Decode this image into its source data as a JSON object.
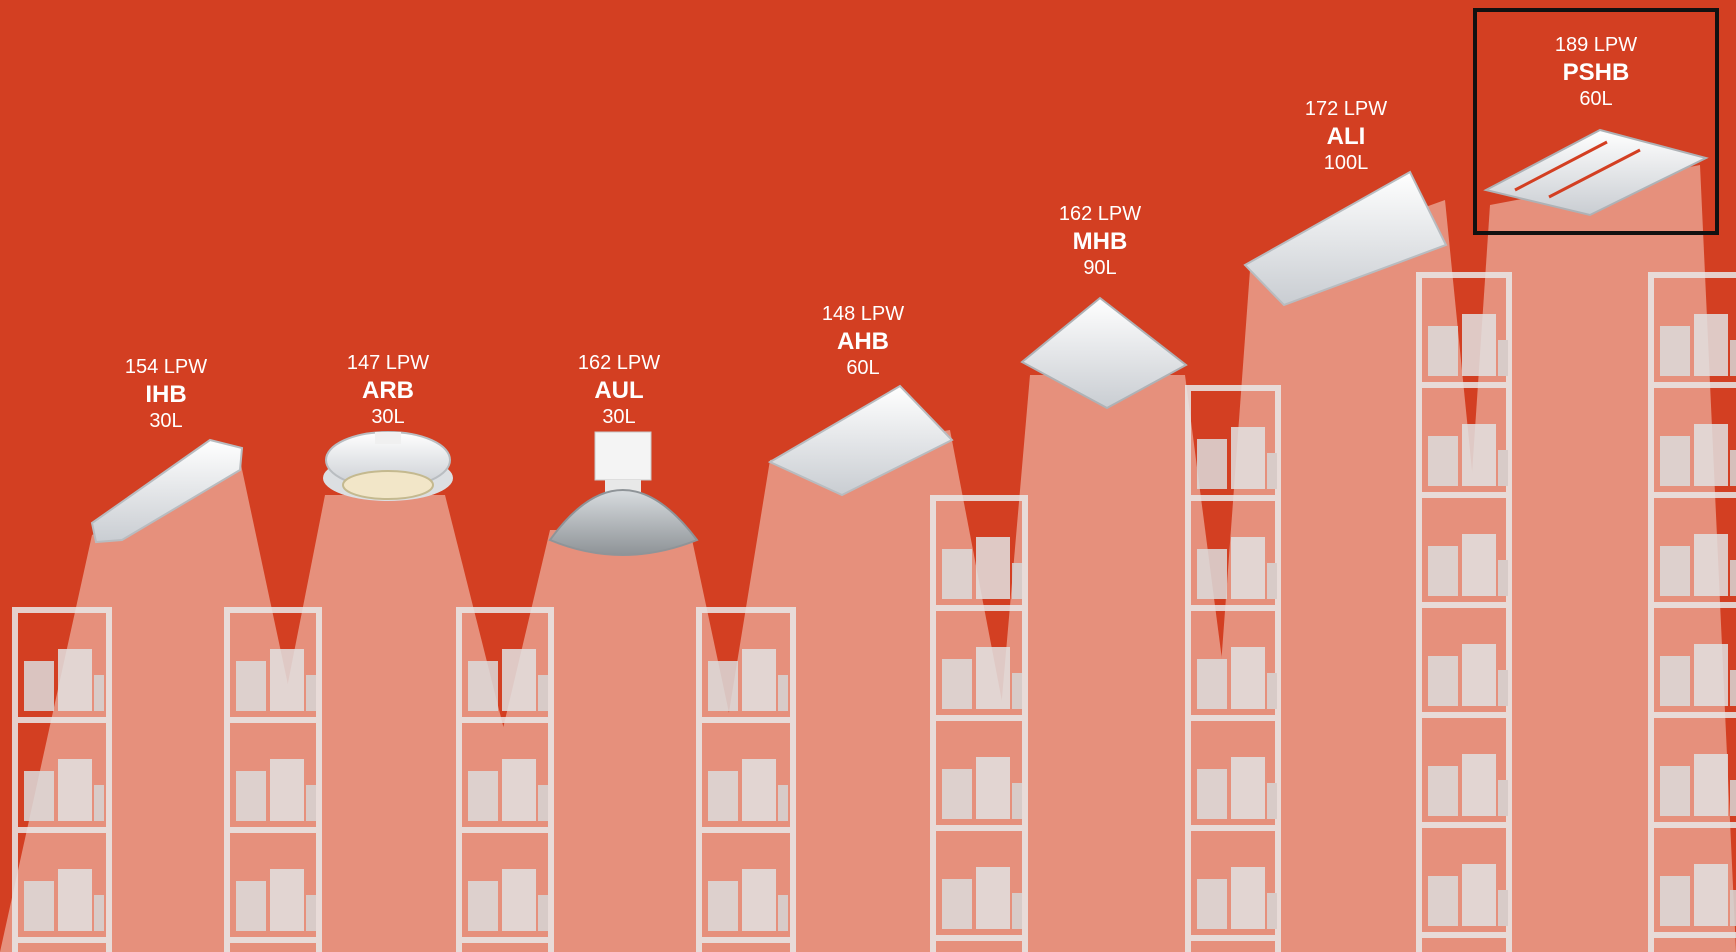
{
  "fixtures": [
    {
      "lpw": "154 LPW",
      "model": "IHB",
      "lumens": "30L"
    },
    {
      "lpw": "147 LPW",
      "model": "ARB",
      "lumens": "30L"
    },
    {
      "lpw": "162 LPW",
      "model": "AUL",
      "lumens": "30L"
    },
    {
      "lpw": "148 LPW",
      "model": "AHB",
      "lumens": "60L"
    },
    {
      "lpw": "162 LPW",
      "model": "MHB",
      "lumens": "90L"
    },
    {
      "lpw": "172 LPW",
      "model": "ALI",
      "lumens": "100L"
    },
    {
      "lpw": "189 LPW",
      "model": "PSHB",
      "lumens": "60L"
    }
  ],
  "highlighted_fixture": "PSHB",
  "colors": {
    "background": "#d33f22",
    "beam": "#f2cbbd",
    "shelving": "#e9e9e9",
    "highlight_border": "#111111"
  },
  "icons": [
    "high-bay-fixture-icon",
    "warehouse-shelving-icon",
    "light-beam-icon"
  ]
}
